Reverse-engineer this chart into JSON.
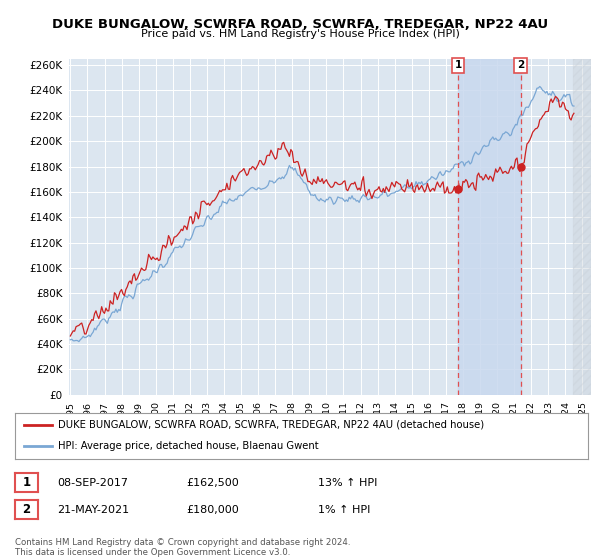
{
  "title": "DUKE BUNGALOW, SCWRFA ROAD, SCWRFA, TREDEGAR, NP22 4AU",
  "subtitle": "Price paid vs. HM Land Registry's House Price Index (HPI)",
  "legend_line1": "DUKE BUNGALOW, SCWRFA ROAD, SCWRFA, TREDEGAR, NP22 4AU (detached house)",
  "legend_line2": "HPI: Average price, detached house, Blaenau Gwent",
  "footnote": "Contains HM Land Registry data © Crown copyright and database right 2024.\nThis data is licensed under the Open Government Licence v3.0.",
  "annotation1": {
    "num": "1",
    "date": "08-SEP-2017",
    "price": "£162,500",
    "pct": "13% ↑ HPI"
  },
  "annotation2": {
    "num": "2",
    "date": "21-MAY-2021",
    "price": "£180,000",
    "pct": "1% ↑ HPI"
  },
  "hpi_color": "#7aa7d4",
  "price_color": "#cc2222",
  "annotation_color": "#e05050",
  "background_color": "#ffffff",
  "plot_bg_color": "#dce6f0",
  "grid_color": "#ffffff",
  "shade_color": "#c8d8ee",
  "ylim": [
    0,
    265000
  ],
  "yticks": [
    0,
    20000,
    40000,
    60000,
    80000,
    100000,
    120000,
    140000,
    160000,
    180000,
    200000,
    220000,
    240000,
    260000
  ],
  "sale1_x": 2017.71,
  "sale1_y": 162500,
  "sale2_x": 2021.38,
  "sale2_y": 180000,
  "xlim_min": 1994.92,
  "xlim_max": 2025.5,
  "hatch_start": 2024.42
}
